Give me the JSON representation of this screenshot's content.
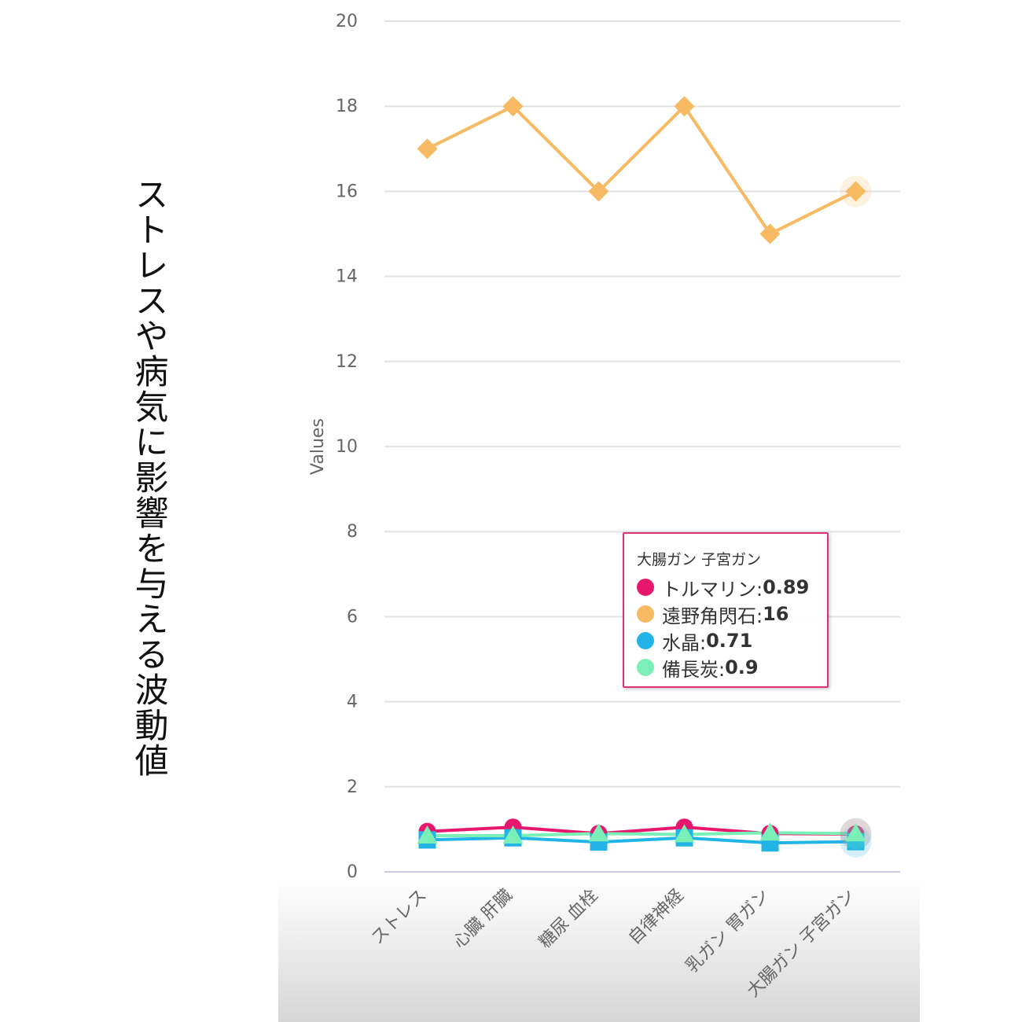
{
  "chart_data": {
    "type": "line",
    "title": "ストレスや病気に影響を与える波動値",
    "ylabel": "Values",
    "categories": [
      "ストレス",
      "心臓 肝臓",
      "糖尿 血栓",
      "自律神経",
      "乳ガン 胃ガン",
      "大腸ガン 子宮ガン"
    ],
    "series": [
      {
        "name": "トルマリン",
        "color": "#e8176e",
        "marker": "circle",
        "values": [
          0.95,
          1.05,
          0.9,
          1.05,
          0.9,
          0.89
        ]
      },
      {
        "name": "遠野角閃石",
        "color": "#f8b963",
        "marker": "diamond",
        "values": [
          17,
          18,
          16,
          18,
          15,
          16
        ]
      },
      {
        "name": "水晶",
        "color": "#22b4e6",
        "marker": "square",
        "values": [
          0.75,
          0.8,
          0.7,
          0.8,
          0.68,
          0.71
        ]
      },
      {
        "name": "備長炭",
        "color": "#7af0b6",
        "marker": "triangle",
        "values": [
          0.85,
          0.85,
          0.9,
          0.88,
          0.92,
          0.9
        ]
      }
    ],
    "ylim": [
      0,
      20
    ],
    "yticks": [
      0,
      2,
      4,
      6,
      8,
      10,
      12,
      14,
      16,
      18,
      20
    ],
    "grid": true
  }
}
